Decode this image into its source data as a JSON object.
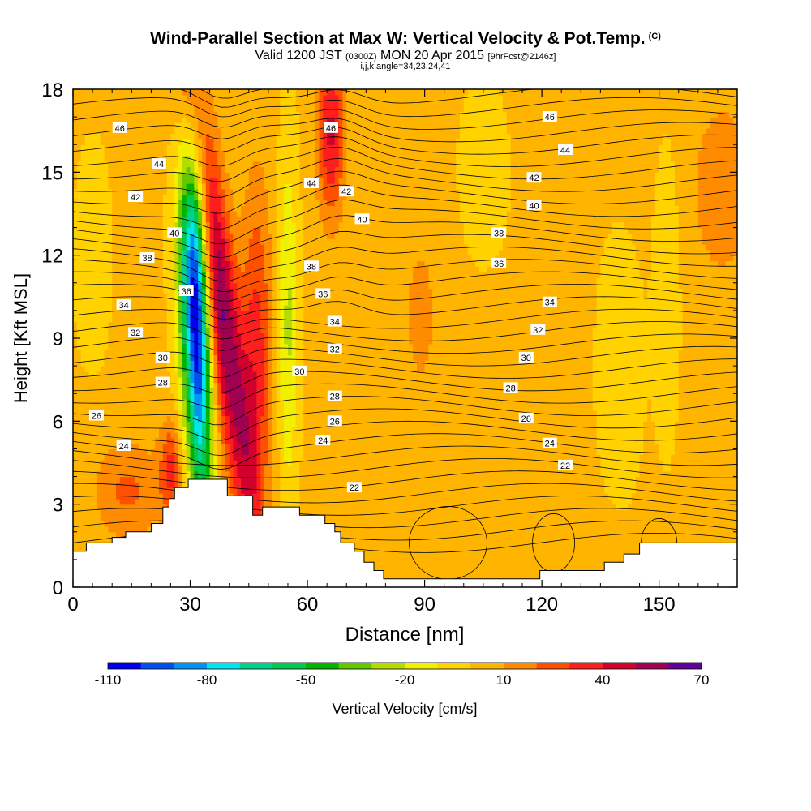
{
  "chart_data": {
    "type": "heatmap",
    "title": "Wind-Parallel Section at Max W: Vertical Velocity & Pot.Temp.",
    "title_mark": "(C)",
    "subtitle": {
      "valid": "Valid 1200 JST",
      "utc": "(0300Z)",
      "date": "MON 20 Apr 2015",
      "fcst": "[9hrFcst@2146z]"
    },
    "subtitle2": "i,j,k,angle=34,23,24,41",
    "xlabel": "Distance [nm]",
    "ylabel": "Height [Kft MSL]",
    "xlim": [
      0,
      170
    ],
    "ylim": [
      0,
      18
    ],
    "xticks": [
      0,
      30,
      60,
      90,
      120,
      150
    ],
    "yticks": [
      0,
      3,
      6,
      9,
      12,
      15,
      18
    ],
    "colorbar": {
      "label": "Vertical Velocity [cm/s]",
      "min": -110,
      "max": 70,
      "step": 10,
      "tick_labels": [
        "-110",
        "-80",
        "-50",
        "-20",
        "10",
        "40",
        "70"
      ],
      "colors": [
        "#0000f0",
        "#0050f0",
        "#0096f0",
        "#00e6f0",
        "#00d28c",
        "#00c850",
        "#00b400",
        "#64c800",
        "#b4dc00",
        "#f0f000",
        "#ffd200",
        "#ffb400",
        "#ff8c00",
        "#ff5000",
        "#ff1e1e",
        "#d2002d",
        "#a00050",
        "#64009b"
      ]
    },
    "contour_labels": [
      {
        "x": 12,
        "y": 16.6,
        "label": "46"
      },
      {
        "x": 22,
        "y": 15.3,
        "label": "44"
      },
      {
        "x": 16,
        "y": 14.1,
        "label": "42"
      },
      {
        "x": 26,
        "y": 12.8,
        "label": "40"
      },
      {
        "x": 19,
        "y": 11.9,
        "label": "38"
      },
      {
        "x": 29,
        "y": 10.7,
        "label": "36"
      },
      {
        "x": 13,
        "y": 10.2,
        "label": "34"
      },
      {
        "x": 16,
        "y": 9.2,
        "label": "32"
      },
      {
        "x": 23,
        "y": 8.3,
        "label": "30"
      },
      {
        "x": 23,
        "y": 7.4,
        "label": "28"
      },
      {
        "x": 6,
        "y": 6.2,
        "label": "26"
      },
      {
        "x": 13,
        "y": 5.1,
        "label": "24"
      },
      {
        "x": 66,
        "y": 16.6,
        "label": "46"
      },
      {
        "x": 61,
        "y": 14.6,
        "label": "44"
      },
      {
        "x": 70,
        "y": 14.3,
        "label": "42"
      },
      {
        "x": 74,
        "y": 13.3,
        "label": "40"
      },
      {
        "x": 61,
        "y": 11.6,
        "label": "38"
      },
      {
        "x": 64,
        "y": 10.6,
        "label": "36"
      },
      {
        "x": 67,
        "y": 9.6,
        "label": "34"
      },
      {
        "x": 67,
        "y": 8.6,
        "label": "32"
      },
      {
        "x": 58,
        "y": 7.8,
        "label": "30"
      },
      {
        "x": 67,
        "y": 6.9,
        "label": "28"
      },
      {
        "x": 67,
        "y": 6.0,
        "label": "26"
      },
      {
        "x": 64,
        "y": 5.3,
        "label": "24"
      },
      {
        "x": 72,
        "y": 3.6,
        "label": "22"
      },
      {
        "x": 122,
        "y": 17.0,
        "label": "46"
      },
      {
        "x": 126,
        "y": 15.8,
        "label": "44"
      },
      {
        "x": 118,
        "y": 14.8,
        "label": "42"
      },
      {
        "x": 118,
        "y": 13.8,
        "label": "40"
      },
      {
        "x": 109,
        "y": 12.8,
        "label": "38"
      },
      {
        "x": 109,
        "y": 11.7,
        "label": "36"
      },
      {
        "x": 122,
        "y": 10.3,
        "label": "34"
      },
      {
        "x": 119,
        "y": 9.3,
        "label": "32"
      },
      {
        "x": 116,
        "y": 8.3,
        "label": "30"
      },
      {
        "x": 112,
        "y": 7.2,
        "label": "28"
      },
      {
        "x": 116,
        "y": 6.1,
        "label": "26"
      },
      {
        "x": 122,
        "y": 5.2,
        "label": "24"
      },
      {
        "x": 126,
        "y": 4.4,
        "label": "22"
      }
    ],
    "terrain": [
      [
        0,
        1.3
      ],
      [
        3.4,
        1.3
      ],
      [
        3.4,
        1.6
      ],
      [
        10,
        1.6
      ],
      [
        10,
        1.8
      ],
      [
        13.5,
        1.8
      ],
      [
        13.5,
        2.0
      ],
      [
        20,
        2.0
      ],
      [
        20,
        2.3
      ],
      [
        23,
        2.3
      ],
      [
        23,
        2.9
      ],
      [
        24.6,
        2.9
      ],
      [
        24.6,
        3.2
      ],
      [
        26,
        3.2
      ],
      [
        26,
        3.6
      ],
      [
        29.5,
        3.6
      ],
      [
        29.5,
        3.9
      ],
      [
        39.5,
        3.9
      ],
      [
        39.5,
        3.3
      ],
      [
        46,
        3.3
      ],
      [
        46,
        2.6
      ],
      [
        48.5,
        2.6
      ],
      [
        48.5,
        2.9
      ],
      [
        58,
        2.9
      ],
      [
        58,
        2.6
      ],
      [
        64.5,
        2.6
      ],
      [
        64.5,
        2.3
      ],
      [
        67,
        2.3
      ],
      [
        67,
        2.0
      ],
      [
        68.5,
        2.0
      ],
      [
        68.5,
        1.6
      ],
      [
        72,
        1.6
      ],
      [
        72,
        1.3
      ],
      [
        74.5,
        1.3
      ],
      [
        74.5,
        0.9
      ],
      [
        77,
        0.9
      ],
      [
        77,
        0.6
      ],
      [
        79.5,
        0.6
      ],
      [
        79.5,
        0.3
      ],
      [
        119.5,
        0.3
      ],
      [
        119.5,
        0.6
      ],
      [
        136,
        0.6
      ],
      [
        136,
        0.9
      ],
      [
        141,
        0.9
      ],
      [
        141,
        1.2
      ],
      [
        145,
        1.2
      ],
      [
        145,
        1.6
      ],
      [
        170,
        1.6
      ]
    ]
  }
}
